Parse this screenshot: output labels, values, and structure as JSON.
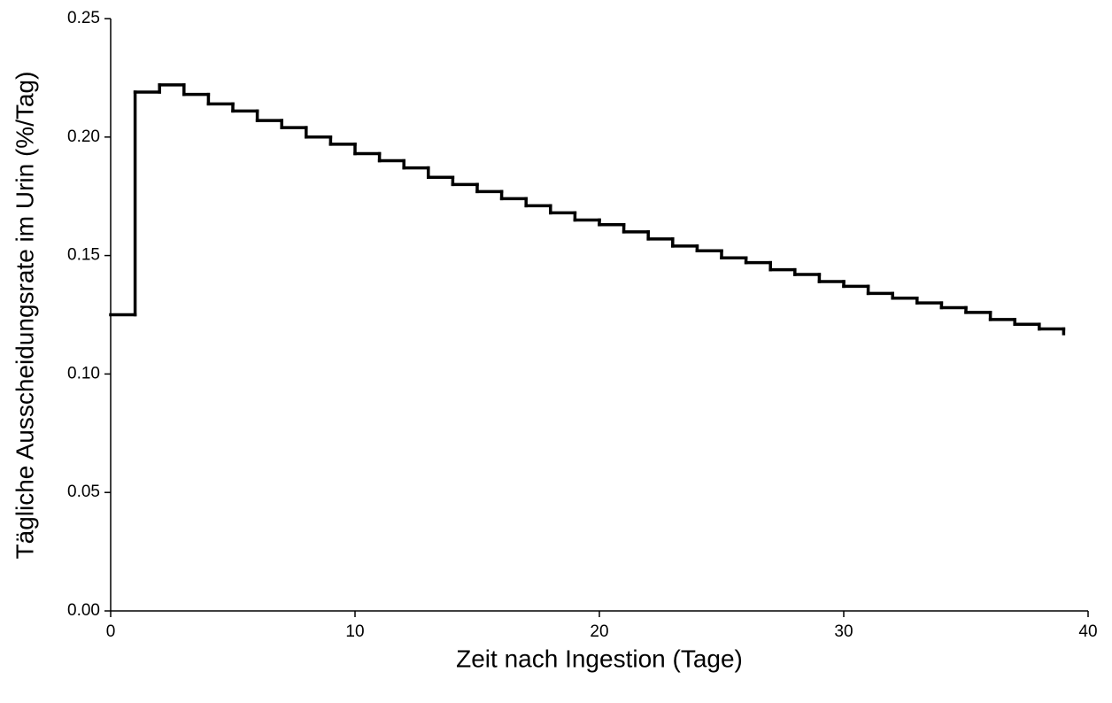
{
  "chart_data": {
    "type": "step",
    "xlabel": "Zeit nach Ingestion (Tage)",
    "ylabel": "Tägliche Ausscheidungsrate im Urin (%/Tag)",
    "x": [
      0,
      1,
      2,
      3,
      4,
      5,
      6,
      7,
      8,
      9,
      10,
      11,
      12,
      13,
      14,
      15,
      16,
      17,
      18,
      19,
      20,
      21,
      22,
      23,
      24,
      25,
      26,
      27,
      28,
      29,
      30,
      31,
      32,
      33,
      34,
      35,
      36,
      37,
      38,
      39
    ],
    "values": [
      0.125,
      0.219,
      0.222,
      0.218,
      0.214,
      0.211,
      0.207,
      0.204,
      0.2,
      0.197,
      0.193,
      0.19,
      0.187,
      0.183,
      0.18,
      0.177,
      0.174,
      0.171,
      0.168,
      0.165,
      0.163,
      0.16,
      0.157,
      0.154,
      0.152,
      0.149,
      0.147,
      0.144,
      0.142,
      0.139,
      0.137,
      0.134,
      0.132,
      0.13,
      0.128,
      0.126,
      0.123,
      0.121,
      0.119,
      0.117
    ],
    "color": "#000000",
    "xlim": [
      0,
      40
    ],
    "xticks": [
      0,
      10,
      20,
      30,
      40
    ],
    "ylim": [
      0,
      0.25
    ],
    "yticks": [
      {
        "value": 0,
        "label": "0.00"
      },
      {
        "value": 0.05,
        "label": "0.05"
      },
      {
        "value": 0.1,
        "label": "0.10"
      },
      {
        "value": 0.15,
        "label": "0.15"
      },
      {
        "value": 0.2,
        "label": "0.20"
      },
      {
        "value": 0.25,
        "label": "0.25"
      }
    ],
    "grid": false
  }
}
